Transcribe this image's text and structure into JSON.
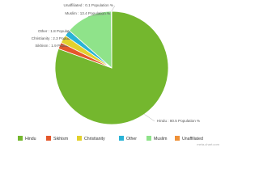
{
  "chart_data": {
    "type": "pie",
    "categories": [
      "Hindu",
      "Sikhism",
      "Christianity",
      "Other",
      "Muslim",
      "Unaffiliated"
    ],
    "values": [
      80.5,
      1.9,
      2.3,
      1.8,
      13.4,
      0.1
    ],
    "value_labels": [
      "Hindu : 80.5 Population %",
      "Sikhism : 1.9 Population %",
      "Christianity : 2.3 Population %",
      "Other : 1.8 Population %",
      "Muslim : 13.4 Population %",
      "Unaffiliated : 0.1 Population %"
    ],
    "colors": [
      "#74b72e",
      "#e4572b",
      "#e3d12c",
      "#2ab3d6",
      "#8fe38a",
      "#ef9138"
    ],
    "legend": "bottom",
    "watermark": "meta-chart.com"
  }
}
